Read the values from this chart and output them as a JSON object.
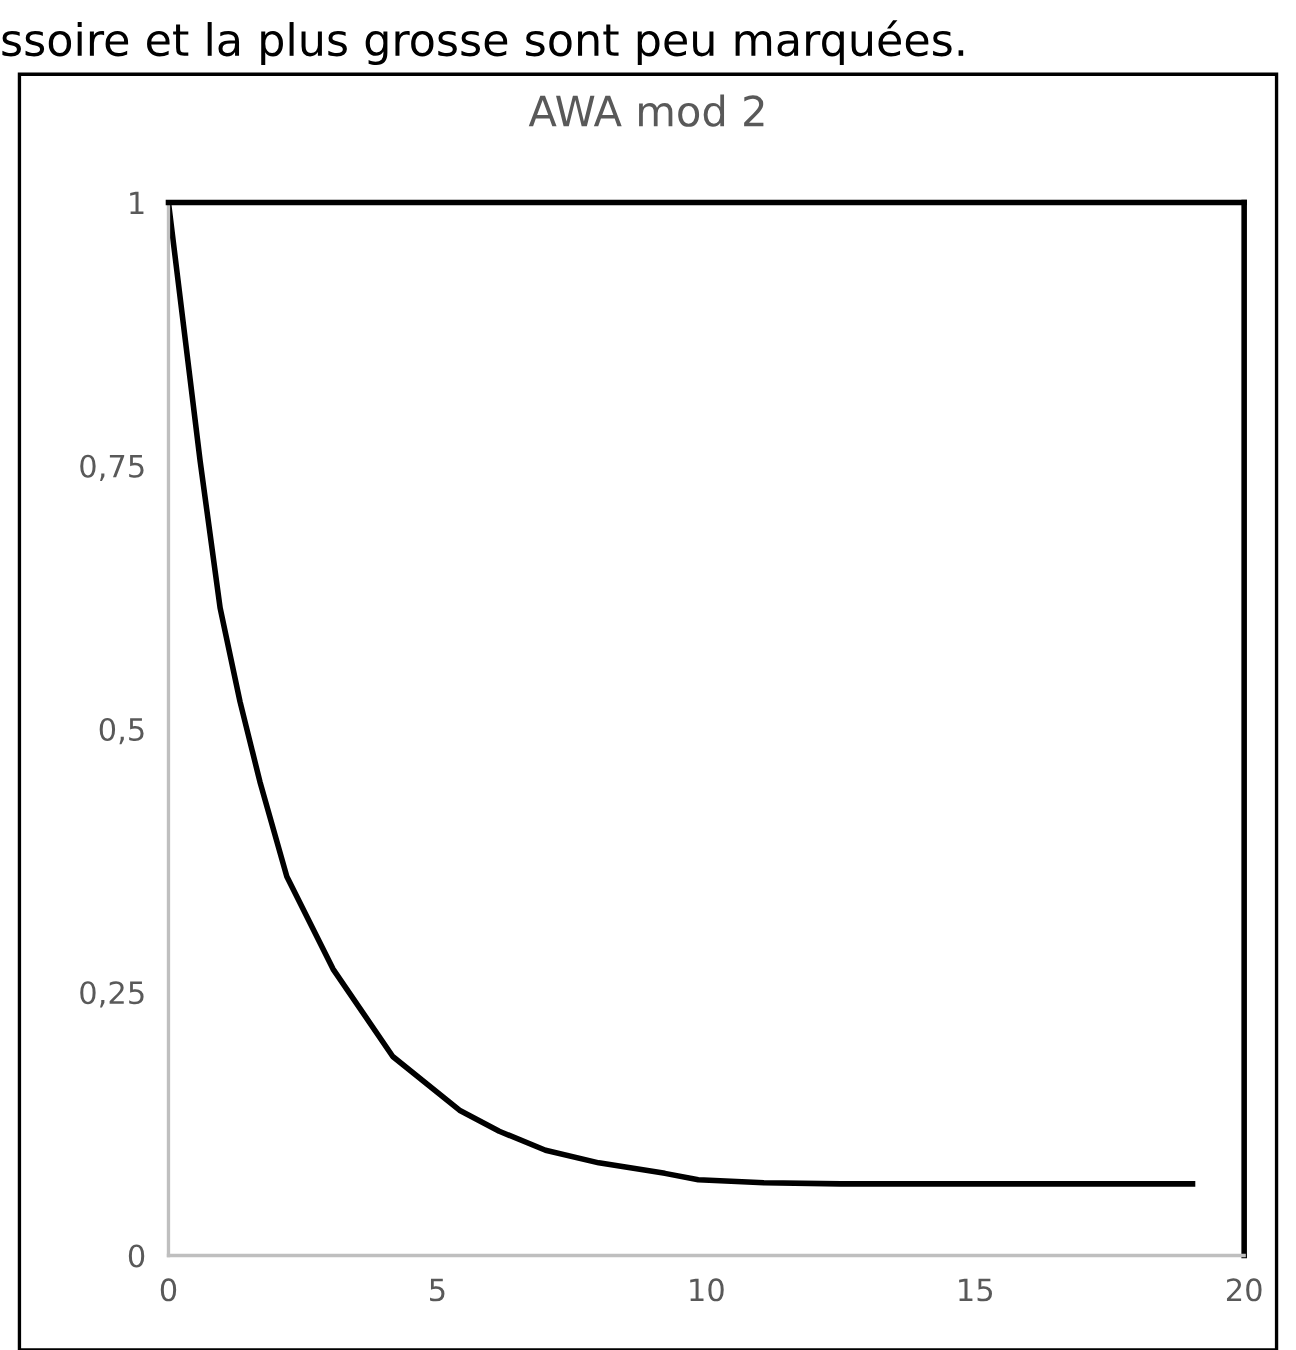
{
  "chart_data": {
    "type": "line",
    "title": "AWA mod 2",
    "annotations": [
      "ssoire et la plus grosse sont peu marquées."
    ],
    "x": [
      0,
      0.59,
      0.96,
      1.33,
      1.7,
      2.2,
      3.06,
      4.17,
      5.41,
      6.15,
      7.01,
      8.0,
      9.23,
      9.85,
      11.07,
      12.5,
      15,
      19.04
    ],
    "series": [
      {
        "color": "#000000",
        "values": [
          1,
          0.754,
          0.615,
          0.526,
          0.45,
          0.36,
          0.272,
          0.189,
          0.138,
          0.118,
          0.1,
          0.088,
          0.078,
          0.072,
          0.069,
          0.068,
          0.068,
          0.068
        ]
      }
    ],
    "xlim": [
      0,
      20
    ],
    "xticks": [
      0,
      5,
      10,
      15,
      20
    ],
    "ylim": [
      0,
      1
    ],
    "yticks": [
      {
        "value": 0,
        "label": "0"
      },
      {
        "value": 0.25,
        "label": "0,25"
      },
      {
        "value": 0.5,
        "label": "0,5"
      },
      {
        "value": 0.75,
        "label": "0,75"
      },
      {
        "value": 1,
        "label": "1"
      }
    ],
    "grid": false,
    "marker": "none",
    "line_style": "solid",
    "legend": false
  }
}
